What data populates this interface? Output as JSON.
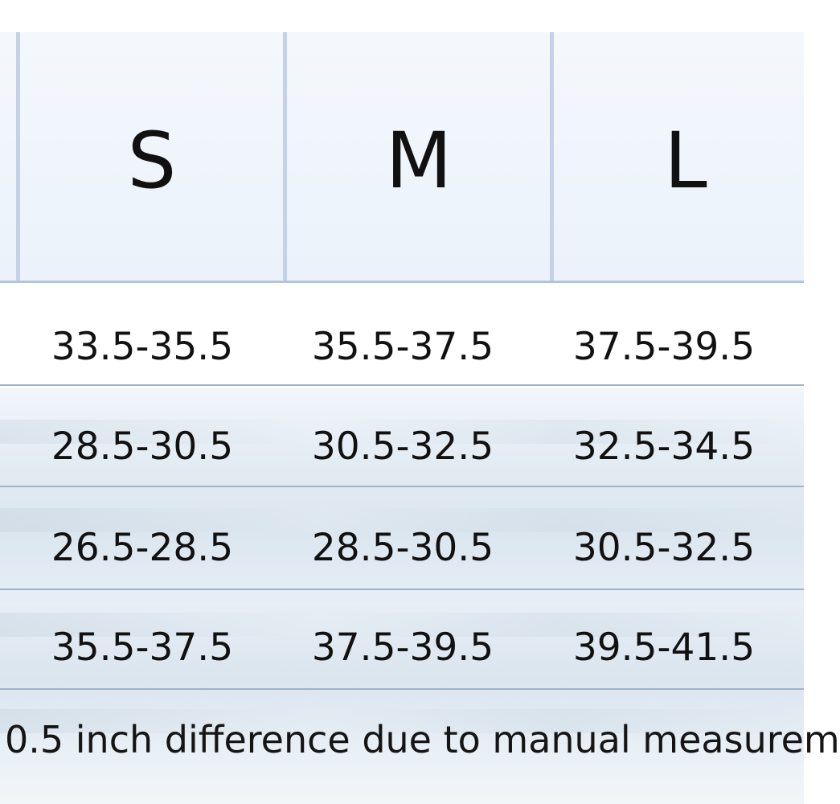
{
  "size_chart": {
    "sizes": [
      "S",
      "M",
      "L"
    ],
    "rows": [
      [
        "33.5-35.5",
        "35.5-37.5",
        "37.5-39.5"
      ],
      [
        "28.5-30.5",
        "30.5-32.5",
        "32.5-34.5"
      ],
      [
        "26.5-28.5",
        "28.5-30.5",
        "30.5-32.5"
      ],
      [
        "35.5-37.5",
        "37.5-39.5",
        "39.5-41.5"
      ]
    ],
    "note": "0.5 inch difference due to manual measurem"
  },
  "colors": {
    "header_bg": "#ebf2fa",
    "grid_line": "#c3d2e6",
    "text": "#111111"
  }
}
